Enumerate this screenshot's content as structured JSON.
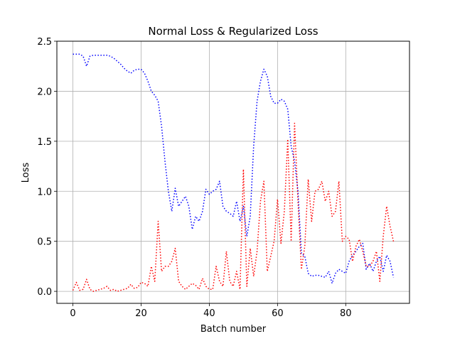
{
  "chart_data": {
    "type": "line",
    "title": "Normal Loss & Regularized Loss",
    "xlabel": "Batch number",
    "ylabel": "Loss",
    "xlim": [
      -4.7,
      98.7
    ],
    "ylim": [
      -0.12,
      2.5
    ],
    "xticks": [
      0,
      20,
      40,
      60,
      80
    ],
    "yticks": [
      0.0,
      0.5,
      1.0,
      1.5,
      2.0,
      2.5
    ],
    "xtick_labels": [
      "0",
      "20",
      "40",
      "60",
      "80"
    ],
    "ytick_labels": [
      "0.0",
      "0.5",
      "1.0",
      "1.5",
      "2.0",
      "2.5"
    ],
    "grid": true,
    "line_style": "dotted",
    "series": [
      {
        "color": "#0000ff",
        "x": [
          0,
          1,
          2,
          3,
          4,
          5,
          6,
          7,
          8,
          9,
          10,
          11,
          12,
          13,
          14,
          15,
          16,
          17,
          18,
          19,
          20,
          21,
          22,
          23,
          24,
          25,
          26,
          27,
          28,
          29,
          30,
          31,
          32,
          33,
          34,
          35,
          36,
          37,
          38,
          39,
          40,
          41,
          42,
          43,
          44,
          45,
          46,
          47,
          48,
          49,
          50,
          51,
          52,
          53,
          54,
          55,
          56,
          57,
          58,
          59,
          60,
          61,
          62,
          63,
          64,
          65,
          66,
          67,
          68,
          69,
          70,
          71,
          72,
          73,
          74,
          75,
          76,
          77,
          78,
          79,
          80,
          81,
          82,
          83,
          84,
          85,
          86,
          87,
          88,
          89,
          90,
          91,
          92,
          93,
          94
        ],
        "values": [
          2.37,
          2.37,
          2.37,
          2.35,
          2.25,
          2.35,
          2.36,
          2.36,
          2.36,
          2.36,
          2.36,
          2.35,
          2.33,
          2.3,
          2.27,
          2.23,
          2.2,
          2.18,
          2.21,
          2.22,
          2.22,
          2.18,
          2.1,
          2.0,
          1.96,
          1.9,
          1.65,
          1.3,
          1.0,
          0.8,
          1.03,
          0.85,
          0.9,
          0.95,
          0.85,
          0.62,
          0.75,
          0.7,
          0.8,
          1.02,
          0.97,
          1.0,
          1.02,
          1.1,
          0.85,
          0.8,
          0.78,
          0.75,
          0.9,
          0.7,
          0.85,
          0.55,
          0.75,
          1.45,
          1.9,
          2.1,
          2.22,
          2.15,
          1.95,
          1.88,
          1.88,
          1.92,
          1.9,
          1.82,
          1.45,
          1.3,
          1.0,
          0.38,
          0.35,
          0.18,
          0.15,
          0.16,
          0.16,
          0.15,
          0.14,
          0.2,
          0.08,
          0.18,
          0.22,
          0.2,
          0.18,
          0.3,
          0.36,
          0.4,
          0.45,
          0.48,
          0.22,
          0.28,
          0.2,
          0.3,
          0.35,
          0.2,
          0.36,
          0.3,
          0.14
        ]
      },
      {
        "color": "#ff0000",
        "x": [
          0,
          1,
          2,
          3,
          4,
          5,
          6,
          7,
          8,
          9,
          10,
          11,
          12,
          13,
          14,
          15,
          16,
          17,
          18,
          19,
          20,
          21,
          22,
          23,
          24,
          25,
          26,
          27,
          28,
          29,
          30,
          31,
          32,
          33,
          34,
          35,
          36,
          37,
          38,
          39,
          40,
          41,
          42,
          43,
          44,
          45,
          46,
          47,
          48,
          49,
          50,
          51,
          52,
          53,
          54,
          55,
          56,
          57,
          58,
          59,
          60,
          61,
          62,
          63,
          64,
          65,
          66,
          67,
          68,
          69,
          70,
          71,
          72,
          73,
          74,
          75,
          76,
          77,
          78,
          79,
          80,
          81,
          82,
          83,
          84,
          85,
          86,
          87,
          88,
          89,
          90,
          91,
          92,
          93,
          94
        ],
        "values": [
          0.01,
          0.09,
          0.01,
          0.02,
          0.12,
          0.02,
          0.0,
          0.01,
          0.02,
          0.03,
          0.05,
          0.01,
          0.02,
          0.0,
          0.01,
          0.02,
          0.03,
          0.07,
          0.03,
          0.04,
          0.09,
          0.08,
          0.05,
          0.25,
          0.1,
          0.7,
          0.2,
          0.25,
          0.25,
          0.3,
          0.43,
          0.1,
          0.05,
          0.02,
          0.05,
          0.08,
          0.06,
          0.02,
          0.13,
          0.05,
          0.02,
          0.02,
          0.25,
          0.1,
          0.05,
          0.4,
          0.1,
          0.05,
          0.2,
          0.02,
          1.22,
          0.05,
          0.43,
          0.15,
          0.4,
          0.9,
          1.1,
          0.2,
          0.35,
          0.5,
          0.92,
          0.48,
          0.8,
          1.52,
          0.5,
          1.68,
          0.9,
          0.22,
          0.45,
          1.12,
          0.7,
          1.0,
          1.02,
          1.1,
          0.9,
          1.0,
          0.75,
          0.8,
          1.1,
          0.5,
          0.55,
          0.52,
          0.3,
          0.45,
          0.52,
          0.4,
          0.25,
          0.25,
          0.3,
          0.4,
          0.1,
          0.55,
          0.85,
          0.65,
          0.5
        ]
      }
    ]
  }
}
